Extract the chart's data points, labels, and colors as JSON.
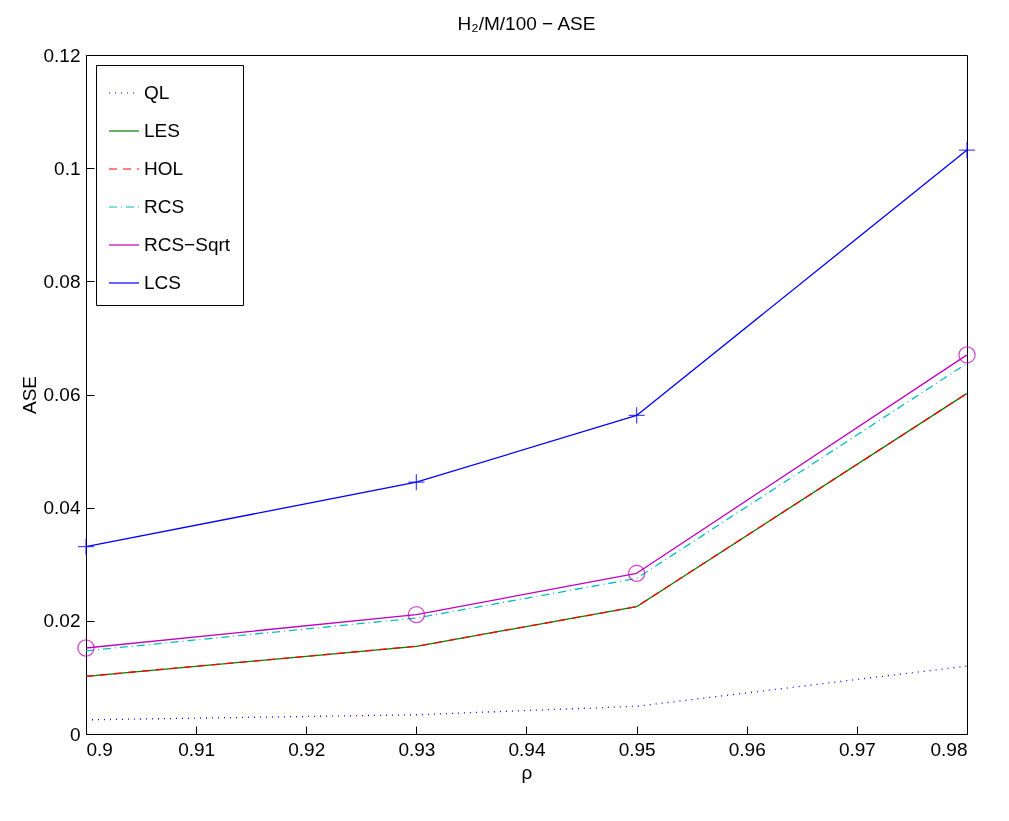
{
  "chart_data": {
    "type": "line",
    "title": "H₂/M/100 − ASE",
    "xlabel": "ρ",
    "ylabel": "ASE",
    "x": [
      0.9,
      0.93,
      0.95,
      0.98
    ],
    "series": [
      {
        "name": "QL",
        "color": "#0000ff",
        "line_style": "dotted",
        "marker": "none",
        "values": [
          0.0025,
          0.0034,
          0.0049,
          0.012
        ]
      },
      {
        "name": "LES",
        "color": "#008000",
        "line_style": "solid",
        "marker": "none",
        "values": [
          0.0102,
          0.0155,
          0.0225,
          0.0602
        ]
      },
      {
        "name": "HOL",
        "color": "#ff0000",
        "line_style": "dashed",
        "marker": "none",
        "values": [
          0.0102,
          0.0155,
          0.0225,
          0.0602
        ]
      },
      {
        "name": "RCS",
        "color": "#00bfbf",
        "line_style": "dashdot",
        "marker": "none",
        "values": [
          0.0147,
          0.0205,
          0.0275,
          0.0655
        ]
      },
      {
        "name": "RCS−Sqrt",
        "color": "#bf00bf",
        "line_style": "solid",
        "marker": "circle",
        "values": [
          0.0152,
          0.0211,
          0.0284,
          0.067
        ]
      },
      {
        "name": "LCS",
        "color": "#0000ff",
        "line_style": "solid",
        "marker": "cross",
        "values": [
          0.0331,
          0.0445,
          0.0563,
          0.1032
        ]
      }
    ],
    "xlim": [
      0.9,
      0.98
    ],
    "xticks": [
      0.9,
      0.91,
      0.92,
      0.93,
      0.94,
      0.95,
      0.96,
      0.97,
      0.98
    ],
    "ylim": [
      0,
      0.12
    ],
    "yticks": [
      0,
      0.02,
      0.04,
      0.06,
      0.08,
      0.1,
      0.12
    ],
    "grid": false,
    "legend": "top left"
  }
}
